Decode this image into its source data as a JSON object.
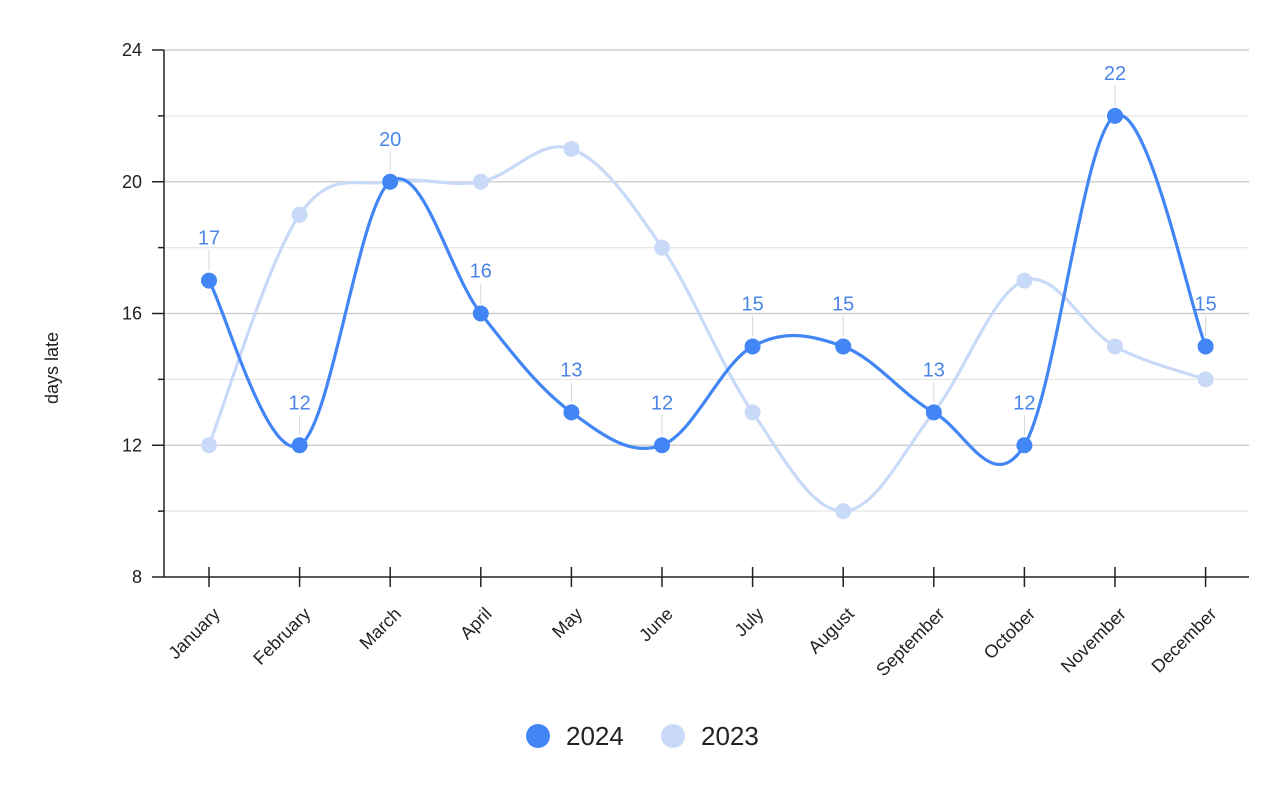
{
  "chart_data": {
    "type": "line",
    "smooth": true,
    "categories": [
      "January",
      "February",
      "March",
      "April",
      "May",
      "June",
      "July",
      "August",
      "September",
      "October",
      "November",
      "December"
    ],
    "series": [
      {
        "name": "2024",
        "color": "#4285f4",
        "values": [
          17,
          12,
          20,
          16,
          13,
          12,
          15,
          15,
          13,
          12,
          22,
          15
        ],
        "data_labels": true
      },
      {
        "name": "2023",
        "color": "#c9daf8",
        "values": [
          12,
          19,
          20,
          20,
          21,
          18,
          13,
          10,
          13,
          17,
          15,
          14
        ],
        "data_labels": false
      }
    ],
    "xlabel": "",
    "ylabel": "days late",
    "ylim": [
      8,
      24
    ],
    "yticks": [
      8,
      12,
      16,
      20,
      24
    ],
    "grid": true,
    "legend": "bottom"
  }
}
